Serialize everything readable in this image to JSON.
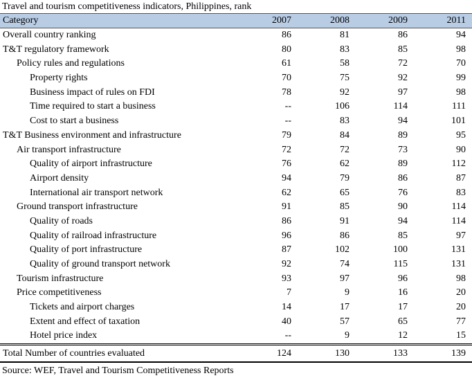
{
  "title": "Travel and tourism competitiveness indicators, Philippines, rank",
  "source": "Source: WEF, Travel and Tourism Competitiveness Reports",
  "colors": {
    "header_bg": "#b8cce4",
    "header_border": "#555555",
    "total_border": "#000000",
    "text": "#000000",
    "page_bg": "#ffffff"
  },
  "chart_data": {
    "type": "table",
    "title": "Travel and tourism competitiveness indicators, Philippines, rank",
    "columns": [
      "Category",
      "2007",
      "2008",
      "2009",
      "2011"
    ],
    "missing_value_marker": "--",
    "rows": [
      {
        "label": "Overall country ranking",
        "indent": 0,
        "values": [
          "86",
          "81",
          "86",
          "94"
        ]
      },
      {
        "label": "T&T regulatory framework",
        "indent": 0,
        "values": [
          "80",
          "83",
          "85",
          "98"
        ]
      },
      {
        "label": "Policy rules and regulations",
        "indent": 1,
        "values": [
          "61",
          "58",
          "72",
          "70"
        ]
      },
      {
        "label": "Property rights",
        "indent": 2,
        "values": [
          "70",
          "75",
          "92",
          "99"
        ]
      },
      {
        "label": "Business impact of rules on FDI",
        "indent": 2,
        "values": [
          "78",
          "92",
          "97",
          "98"
        ]
      },
      {
        "label": "Time required to start a business",
        "indent": 2,
        "values": [
          "--",
          "106",
          "114",
          "111"
        ]
      },
      {
        "label": "Cost to start a business",
        "indent": 2,
        "values": [
          "--",
          "83",
          "94",
          "101"
        ]
      },
      {
        "label": "T&T Business environment and infrastructure",
        "indent": 0,
        "values": [
          "79",
          "84",
          "89",
          "95"
        ]
      },
      {
        "label": "Air transport infrastructure",
        "indent": 1,
        "values": [
          "72",
          "72",
          "73",
          "90"
        ]
      },
      {
        "label": "Quality of airport infrastructure",
        "indent": 2,
        "values": [
          "76",
          "62",
          "89",
          "112"
        ]
      },
      {
        "label": "Airport density",
        "indent": 2,
        "values": [
          "94",
          "79",
          "86",
          "87"
        ]
      },
      {
        "label": "International air transport network",
        "indent": 2,
        "values": [
          "62",
          "65",
          "76",
          "83"
        ]
      },
      {
        "label": "Ground transport infrastructure",
        "indent": 1,
        "values": [
          "91",
          "85",
          "90",
          "114"
        ]
      },
      {
        "label": "Quality of roads",
        "indent": 2,
        "values": [
          "86",
          "91",
          "94",
          "114"
        ]
      },
      {
        "label": "Quality of railroad infrastructure",
        "indent": 2,
        "values": [
          "96",
          "86",
          "85",
          "97"
        ]
      },
      {
        "label": "Quality of port infrastructure",
        "indent": 2,
        "values": [
          "87",
          "102",
          "100",
          "131"
        ]
      },
      {
        "label": "Quality of ground transport network",
        "indent": 2,
        "values": [
          "92",
          "74",
          "115",
          "131"
        ]
      },
      {
        "label": "Tourism infrastructure",
        "indent": 1,
        "values": [
          "93",
          "97",
          "96",
          "98"
        ]
      },
      {
        "label": "Price competitiveness",
        "indent": 1,
        "values": [
          "7",
          "9",
          "16",
          "20"
        ]
      },
      {
        "label": "Tickets and airport charges",
        "indent": 2,
        "values": [
          "14",
          "17",
          "17",
          "20"
        ]
      },
      {
        "label": "Extent and effect of taxation",
        "indent": 2,
        "values": [
          "40",
          "57",
          "65",
          "77"
        ]
      },
      {
        "label": "Hotel price index",
        "indent": 2,
        "values": [
          "--",
          "9",
          "12",
          "15"
        ]
      }
    ],
    "total_row": {
      "label": "Total Number of countries evaluated",
      "values": [
        "124",
        "130",
        "133",
        "139"
      ]
    }
  }
}
